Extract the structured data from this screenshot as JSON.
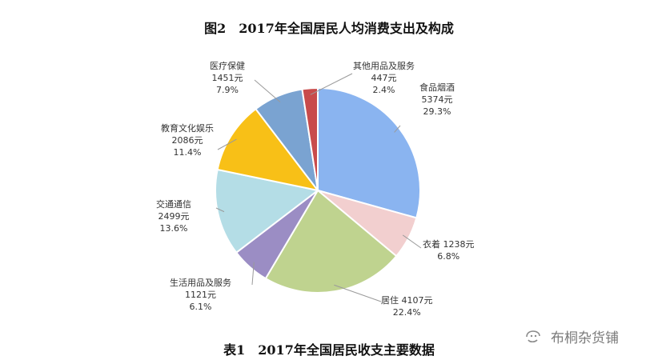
{
  "figure_title": "图2　2017年全国居民人均消费支出及构成",
  "table_title": "表1　2017年全国居民收支主要数据",
  "watermark": {
    "text": "布桐杂货铺",
    "icon": "wechat-icon"
  },
  "chart_data": {
    "type": "pie",
    "title": "图2　2017年全国居民人均消费支出及构成",
    "unit": "元",
    "slices": [
      {
        "name": "食品烟酒",
        "value": 5374,
        "percent": "29.3%",
        "value_label": "5374元",
        "color": "#8ab4f0"
      },
      {
        "name": "衣着",
        "value": 1238,
        "percent": "6.8%",
        "value_label": "1238元",
        "color": "#f2cfcf"
      },
      {
        "name": "居住",
        "value": 4107,
        "percent": "22.4%",
        "value_label": "4107元",
        "color": "#bfd38f"
      },
      {
        "name": "生活用品及服务",
        "value": 1121,
        "percent": "6.1%",
        "value_label": "1121元",
        "color": "#9b8dc4"
      },
      {
        "name": "交通通信",
        "value": 2499,
        "percent": "13.6%",
        "value_label": "2499元",
        "color": "#b4dde6"
      },
      {
        "name": "教育文化娱乐",
        "value": 2086,
        "percent": "11.4%",
        "value_label": "2086元",
        "color": "#f8c017"
      },
      {
        "name": "医疗保健",
        "value": 1451,
        "percent": "7.9%",
        "value_label": "1451元",
        "color": "#7aa3d1"
      },
      {
        "name": "其他用品及服务",
        "value": 447,
        "percent": "2.4%",
        "value_label": "447元",
        "color": "#c84b4b"
      }
    ]
  }
}
